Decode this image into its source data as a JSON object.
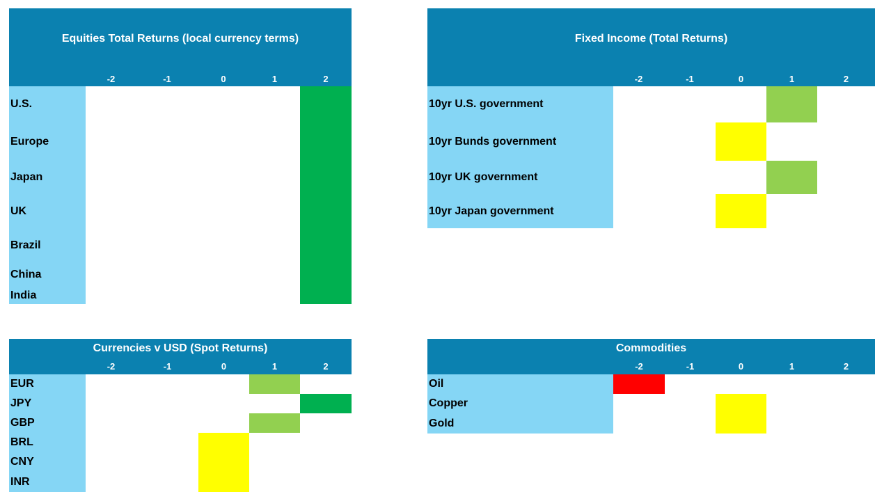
{
  "chart_data": [
    {
      "id": "eq",
      "type": "heatmap",
      "title": "Equities Total Returns (local currency terms)",
      "x_categories": [
        "-2",
        "-1",
        "0",
        "1",
        "2"
      ],
      "rows": [
        {
          "label": "U.S.",
          "value": 2
        },
        {
          "label": "Europe",
          "value": 2
        },
        {
          "label": "Japan",
          "value": 2
        },
        {
          "label": "UK",
          "value": 2
        },
        {
          "label": "Brazil",
          "value": 2
        },
        {
          "label": "China",
          "value": 2
        },
        {
          "label": "India",
          "value": 2
        }
      ]
    },
    {
      "id": "fi",
      "type": "heatmap",
      "title": "Fixed Income (Total Returns)",
      "x_categories": [
        "-2",
        "-1",
        "0",
        "1",
        "2"
      ],
      "rows": [
        {
          "label": "10yr U.S. government",
          "value": 1
        },
        {
          "label": "10yr Bunds government",
          "value": 0
        },
        {
          "label": "10yr UK government",
          "value": 1
        },
        {
          "label": "10yr Japan government",
          "value": 0
        }
      ]
    },
    {
      "id": "cur",
      "type": "heatmap",
      "title": "Currencies v USD (Spot Returns)",
      "x_categories": [
        "-2",
        "-1",
        "0",
        "1",
        "2"
      ],
      "rows": [
        {
          "label": "EUR",
          "value": 1
        },
        {
          "label": "JPY",
          "value": 2
        },
        {
          "label": "GBP",
          "value": 1
        },
        {
          "label": "BRL",
          "value": 0
        },
        {
          "label": "CNY",
          "value": 0
        },
        {
          "label": "INR",
          "value": 0
        }
      ]
    },
    {
      "id": "com",
      "type": "heatmap",
      "title": "Commodities",
      "x_categories": [
        "-2",
        "-1",
        "0",
        "1",
        "2"
      ],
      "rows": [
        {
          "label": "Oil",
          "value": -2
        },
        {
          "label": "Copper",
          "value": 0
        },
        {
          "label": "Gold",
          "value": 0
        }
      ]
    }
  ],
  "colors": {
    "header": "#0b81b0",
    "label_background": "#85d6f5",
    "value_-2": "#ff0000",
    "value_-1": "#ffc000",
    "value_0": "#ffff00",
    "value_1": "#92d050",
    "value_2": "#00b050"
  }
}
